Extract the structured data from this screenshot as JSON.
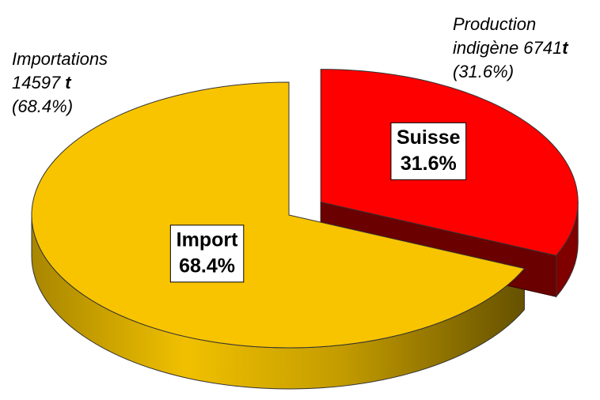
{
  "chart_data": {
    "type": "pie",
    "categories": [
      "Suisse",
      "Import"
    ],
    "values": [
      31.6,
      68.4
    ],
    "value_labels": [
      "31.6%",
      "68.4%"
    ],
    "colors": [
      "#ff0000",
      "#f8c400"
    ],
    "side_colors": [
      "#800000",
      "#b08c00"
    ],
    "annotations": [
      {
        "lines": [
          [
            {
              "text": "Production"
            }
          ],
          [
            {
              "text": "indigène 6741"
            },
            {
              "text": "t",
              "bold": true
            }
          ],
          [
            {
              "text": "(31.6%)"
            }
          ]
        ]
      },
      {
        "lines": [
          [
            {
              "text": "Importations"
            }
          ],
          [
            {
              "text": "14597 "
            },
            {
              "text": "t",
              "bold": true
            }
          ],
          [
            {
              "text": "(68.4%)"
            }
          ]
        ]
      }
    ]
  }
}
